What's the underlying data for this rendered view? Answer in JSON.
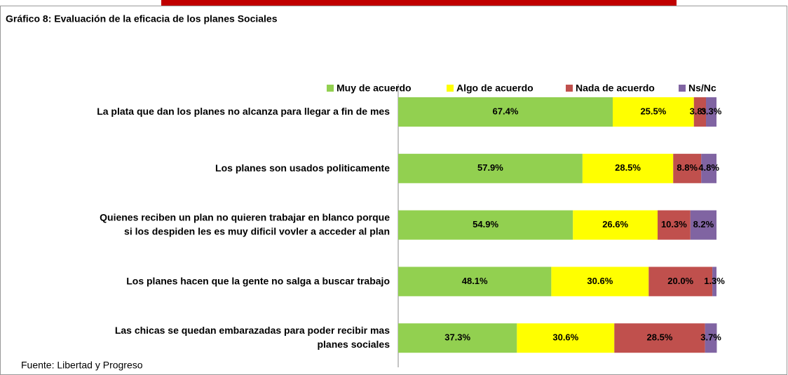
{
  "chart_data": {
    "type": "stacked-bar-horizontal",
    "title": "Gráfico 8: Evaluación de la eficacia de los planes Sociales",
    "source": "Fuente: Libertad y Progreso",
    "categories": [
      "La plata que dan los planes no alcanza para llegar a fin de mes",
      "Los planes son usados politicamente",
      "Quienes reciben un plan no quieren trabajar en blanco porque\nsi los despiden les es muy dificil vovler a acceder al plan",
      "Los planes hacen que la gente no salga a buscar trabajo",
      "Las chicas se quedan embarazadas para poder recibir mas\nplanes sociales"
    ],
    "xlim": [
      0,
      100
    ],
    "legend": "top",
    "series": [
      {
        "name": "Muy de acuerdo",
        "color": "#92d050",
        "values": [
          67.4,
          57.9,
          54.9,
          48.1,
          37.3
        ],
        "value_labels": [
          "67.4%",
          "57.9%",
          "54.9%",
          "48.1%",
          "37.3%"
        ]
      },
      {
        "name": "Algo de acuerdo",
        "color": "#ffff00",
        "values": [
          25.5,
          28.5,
          26.6,
          30.6,
          30.6
        ],
        "value_labels": [
          "25.5%",
          "28.5%",
          "26.6%",
          "30.6%",
          "30.6%"
        ]
      },
      {
        "name": "Nada de acuerdo",
        "color": "#c0504d",
        "values": [
          3.8,
          8.8,
          10.3,
          20.0,
          28.5
        ],
        "value_labels": [
          "3.8%",
          "8.8%",
          "10.3%",
          "20.0%",
          "28.5%"
        ]
      },
      {
        "name": "Ns/Nc",
        "color": "#8064a2",
        "values": [
          3.3,
          4.8,
          8.2,
          1.3,
          3.7
        ],
        "value_labels": [
          "3.3%",
          "4.8%",
          "8.2%",
          "1.3%",
          "3.7%"
        ]
      }
    ]
  }
}
